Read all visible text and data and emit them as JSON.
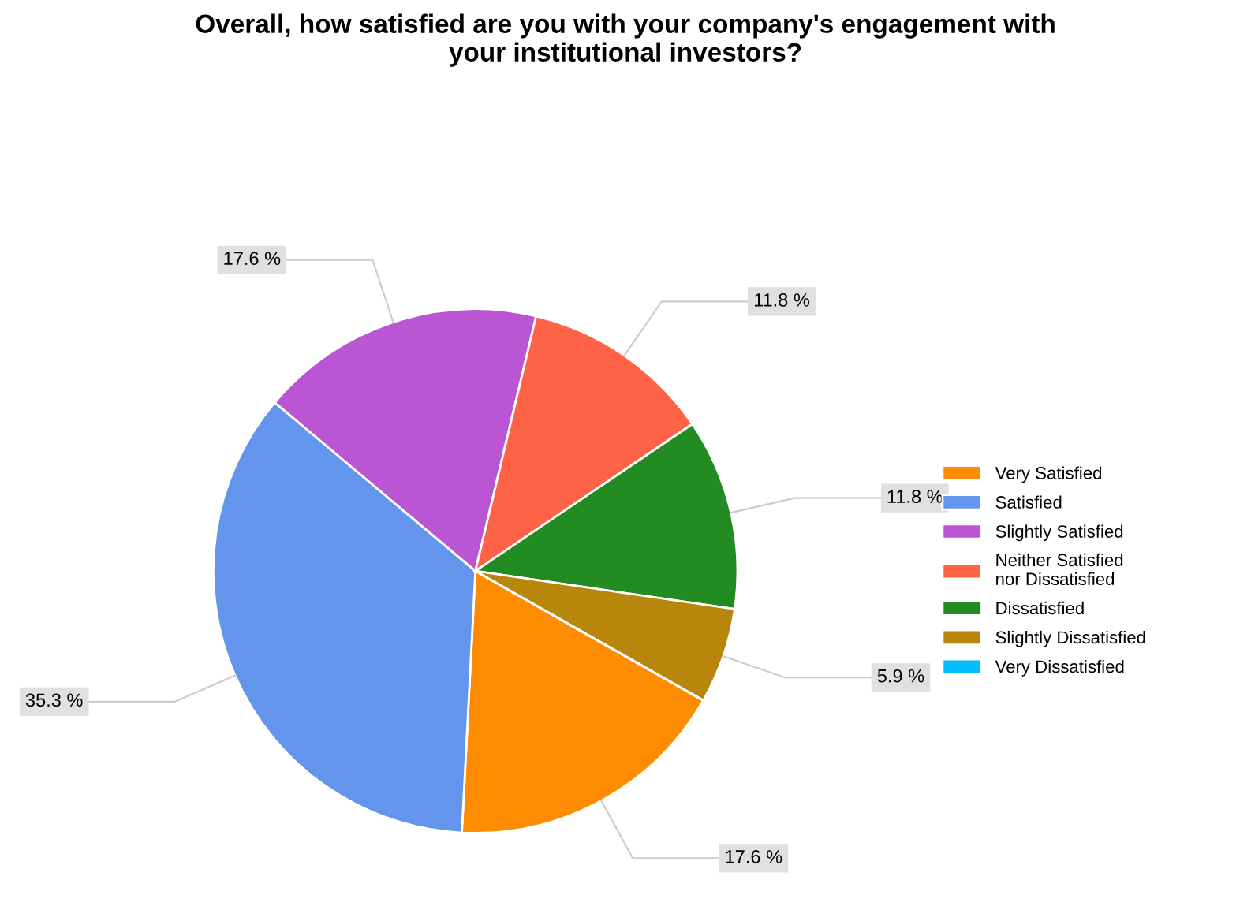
{
  "chart_data": {
    "type": "pie",
    "title": "Overall, how satisfied are you with your company's engagement with\nyour institutional investors?",
    "categories": [
      "Very Satisfied",
      "Satisfied",
      "Slightly Satisfied",
      "Neither Satisfied\nnor Dissatisfied",
      "Dissatisfied",
      "Slightly Dissatisfied",
      "Very Dissatisfied"
    ],
    "values": [
      17.6,
      35.3,
      17.6,
      11.8,
      11.8,
      5.9,
      0
    ],
    "colors": [
      "#ff8c00",
      "#6495ed",
      "#ba55d3",
      "#ff6347",
      "#228b22",
      "#b8860b",
      "#00bfff"
    ],
    "value_labels": [
      "17.6 %",
      "35.3 %",
      "17.6 %",
      "11.8 %",
      "11.8 %",
      "5.9 %",
      null
    ],
    "legend": "right"
  }
}
